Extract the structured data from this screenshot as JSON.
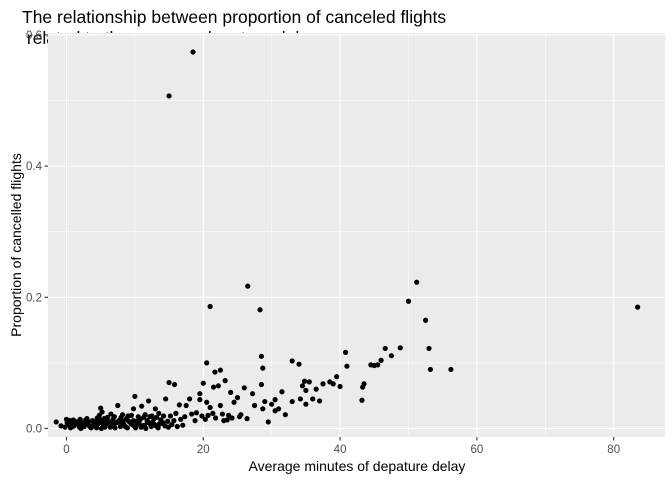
{
  "chart_data": {
    "type": "scatter",
    "title_line1": "The relationship between proportion of canceled flights",
    "title_line2": " related to the average depature delay",
    "xlabel": "Average minutes of depature delay",
    "ylabel": "Proportion of cancelled flights",
    "xlim": [
      -2.7,
      87.5
    ],
    "ylim": [
      -0.013,
      0.603
    ],
    "x_ticks": [
      0,
      20,
      40,
      60,
      80
    ],
    "x_tick_labels": [
      "0",
      "20",
      "40",
      "60",
      "80"
    ],
    "y_ticks": [
      0.0,
      0.2,
      0.4,
      0.6
    ],
    "y_tick_labels": [
      "0.0",
      "0.2",
      "0.4",
      "0.6"
    ],
    "grid": true,
    "background": "#ebebeb",
    "point_color": "#000000",
    "points": [
      [
        18.5,
        0.574
      ],
      [
        15.0,
        0.507
      ],
      [
        83.5,
        0.185
      ],
      [
        51.2,
        0.223
      ],
      [
        50.0,
        0.194
      ],
      [
        52.5,
        0.165
      ],
      [
        53.0,
        0.122
      ],
      [
        53.2,
        0.09
      ],
      [
        56.2,
        0.09
      ],
      [
        26.5,
        0.217
      ],
      [
        21.0,
        0.186
      ],
      [
        28.3,
        0.181
      ],
      [
        48.8,
        0.123
      ],
      [
        46.6,
        0.122
      ],
      [
        47.5,
        0.111
      ],
      [
        46.0,
        0.104
      ],
      [
        45.5,
        0.097
      ],
      [
        44.5,
        0.097
      ],
      [
        45.0,
        0.096
      ],
      [
        40.8,
        0.116
      ],
      [
        41.0,
        0.095
      ],
      [
        43.5,
        0.068
      ],
      [
        43.3,
        0.063
      ],
      [
        43.2,
        0.043
      ],
      [
        39.5,
        0.079
      ],
      [
        38.5,
        0.071
      ],
      [
        40.0,
        0.064
      ],
      [
        39.0,
        0.068
      ],
      [
        37.5,
        0.068
      ],
      [
        36.5,
        0.06
      ],
      [
        35.5,
        0.071
      ],
      [
        34.8,
        0.072
      ],
      [
        34.5,
        0.065
      ],
      [
        35.0,
        0.058
      ],
      [
        34.2,
        0.045
      ],
      [
        36.0,
        0.045
      ],
      [
        35.0,
        0.037
      ],
      [
        37.0,
        0.042
      ],
      [
        33.0,
        0.103
      ],
      [
        34.0,
        0.098
      ],
      [
        30.5,
        0.044
      ],
      [
        30.0,
        0.037
      ],
      [
        31.5,
        0.056
      ],
      [
        31.0,
        0.03
      ],
      [
        30.5,
        0.027
      ],
      [
        32.0,
        0.021
      ],
      [
        33.0,
        0.041
      ],
      [
        28.5,
        0.11
      ],
      [
        28.7,
        0.092
      ],
      [
        26.0,
        0.062
      ],
      [
        27.2,
        0.053
      ],
      [
        28.5,
        0.067
      ],
      [
        29.0,
        0.041
      ],
      [
        28.7,
        0.03
      ],
      [
        29.5,
        0.01
      ],
      [
        27.5,
        0.035
      ],
      [
        25.0,
        0.047
      ],
      [
        24.0,
        0.055
      ],
      [
        25.5,
        0.021
      ],
      [
        24.5,
        0.04
      ],
      [
        22.5,
        0.089
      ],
      [
        20.5,
        0.1
      ],
      [
        21.7,
        0.086
      ],
      [
        23.2,
        0.073
      ],
      [
        22.2,
        0.065
      ],
      [
        21.5,
        0.063
      ],
      [
        20.0,
        0.069
      ],
      [
        19.5,
        0.053
      ],
      [
        19.5,
        0.044
      ],
      [
        18.0,
        0.045
      ],
      [
        20.5,
        0.04
      ],
      [
        21.0,
        0.032
      ],
      [
        22.5,
        0.035
      ],
      [
        23.5,
        0.013
      ],
      [
        24.2,
        0.016
      ],
      [
        17.5,
        0.035
      ],
      [
        15.0,
        0.07
      ],
      [
        15.8,
        0.067
      ],
      [
        14.5,
        0.045
      ],
      [
        16.5,
        0.036
      ],
      [
        12.0,
        0.042
      ],
      [
        11.0,
        0.034
      ],
      [
        13.0,
        0.03
      ],
      [
        10.0,
        0.049
      ],
      [
        9.8,
        0.03
      ],
      [
        7.5,
        0.035
      ],
      [
        5.0,
        0.031
      ],
      [
        5.2,
        0.025
      ],
      [
        4.8,
        0.02
      ],
      [
        6.5,
        0.022
      ],
      [
        8.2,
        0.021
      ],
      [
        9.5,
        0.02
      ],
      [
        11.5,
        0.021
      ],
      [
        12.5,
        0.019
      ],
      [
        13.5,
        0.023
      ],
      [
        14.2,
        0.019
      ],
      [
        15.2,
        0.019
      ],
      [
        16.0,
        0.023
      ],
      [
        17.3,
        0.018
      ],
      [
        18.3,
        0.022
      ],
      [
        19.0,
        0.024
      ],
      [
        19.8,
        0.019
      ],
      [
        20.7,
        0.02
      ],
      [
        21.4,
        0.023
      ],
      [
        22.8,
        0.022
      ],
      [
        23.7,
        0.02
      ],
      [
        25.3,
        0.018
      ],
      [
        26.4,
        0.015
      ],
      [
        18.8,
        0.012
      ],
      [
        20.3,
        0.014
      ],
      [
        21.8,
        0.016
      ],
      [
        23.0,
        0.012
      ],
      [
        16.7,
        0.014
      ],
      [
        15.7,
        0.012
      ],
      [
        14.8,
        0.011
      ],
      [
        13.8,
        0.013
      ],
      [
        12.8,
        0.015
      ],
      [
        11.8,
        0.012
      ],
      [
        10.8,
        0.014
      ],
      [
        9.8,
        0.012
      ],
      [
        8.8,
        0.015
      ],
      [
        7.8,
        0.013
      ],
      [
        6.8,
        0.014
      ],
      [
        5.8,
        0.012
      ],
      [
        4.8,
        0.014
      ],
      [
        3.8,
        0.012
      ],
      [
        2.8,
        0.013
      ],
      [
        1.8,
        0.011
      ],
      [
        0.8,
        0.01
      ],
      [
        0.0,
        0.014
      ],
      [
        -1.5,
        0.01
      ],
      [
        -0.8,
        0.004
      ],
      [
        -0.2,
        0.002
      ],
      [
        0.3,
        0.006
      ],
      [
        0.9,
        0.003
      ],
      [
        1.4,
        0.007
      ],
      [
        1.9,
        0.002
      ],
      [
        2.4,
        0.005
      ],
      [
        2.9,
        0.008
      ],
      [
        3.4,
        0.003
      ],
      [
        3.9,
        0.006
      ],
      [
        4.4,
        0.001
      ],
      [
        4.9,
        0.009
      ],
      [
        5.4,
        0.004
      ],
      [
        5.9,
        0.007
      ],
      [
        6.4,
        0.002
      ],
      [
        6.9,
        0.005
      ],
      [
        7.4,
        0.009
      ],
      [
        7.9,
        0.003
      ],
      [
        8.4,
        0.006
      ],
      [
        8.9,
        0.001
      ],
      [
        9.4,
        0.008
      ],
      [
        9.9,
        0.004
      ],
      [
        10.4,
        0.007
      ],
      [
        10.9,
        0.002
      ],
      [
        11.4,
        0.005
      ],
      [
        11.9,
        0.009
      ],
      [
        12.4,
        0.003
      ],
      [
        12.9,
        0.006
      ],
      [
        13.4,
        0.001
      ],
      [
        13.9,
        0.008
      ],
      [
        14.4,
        0.004
      ],
      [
        14.9,
        0.002
      ],
      [
        15.4,
        0.006
      ],
      [
        16.2,
        0.003
      ],
      [
        17.0,
        0.005
      ],
      [
        0.1,
        0.009
      ],
      [
        0.6,
        0.001
      ],
      [
        1.1,
        0.004
      ],
      [
        1.6,
        0.008
      ],
      [
        2.1,
        0.0
      ],
      [
        2.6,
        0.003
      ],
      [
        3.1,
        0.007
      ],
      [
        3.6,
        0.001
      ],
      [
        4.1,
        0.004
      ],
      [
        4.6,
        0.007
      ],
      [
        5.1,
        0.0
      ],
      [
        5.6,
        0.002
      ],
      [
        6.1,
        0.01
      ],
      [
        6.6,
        0.008
      ],
      [
        7.1,
        0.001
      ],
      [
        7.6,
        0.011
      ],
      [
        8.1,
        0.009
      ],
      [
        8.6,
        0.003
      ],
      [
        9.1,
        0.011
      ],
      [
        9.6,
        0.006
      ],
      [
        10.1,
        0.001
      ],
      [
        10.6,
        0.009
      ],
      [
        11.1,
        0.004
      ],
      [
        11.6,
        0.0
      ],
      [
        12.1,
        0.008
      ],
      [
        12.6,
        0.01
      ],
      [
        13.1,
        0.004
      ],
      [
        13.6,
        0.007
      ],
      [
        14.1,
        0.009
      ],
      [
        1.2,
        0.011
      ],
      [
        2.2,
        0.009
      ],
      [
        3.2,
        0.01
      ],
      [
        4.2,
        0.01
      ],
      [
        5.3,
        0.011
      ],
      [
        6.3,
        0.01
      ],
      [
        7.3,
        0.009
      ],
      [
        8.3,
        0.011
      ],
      [
        9.3,
        0.01
      ],
      [
        10.3,
        0.011
      ],
      [
        6.0,
        0.017
      ],
      [
        7.0,
        0.018
      ],
      [
        8.0,
        0.017
      ],
      [
        9.0,
        0.019
      ],
      [
        10.5,
        0.018
      ],
      [
        11.3,
        0.017
      ],
      [
        12.2,
        0.018
      ],
      [
        13.2,
        0.017
      ],
      [
        4.5,
        0.016
      ],
      [
        5.5,
        0.015
      ],
      [
        3.0,
        0.015
      ],
      [
        2.0,
        0.014
      ],
      [
        1.0,
        0.013
      ],
      [
        0.5,
        0.012
      ]
    ]
  }
}
